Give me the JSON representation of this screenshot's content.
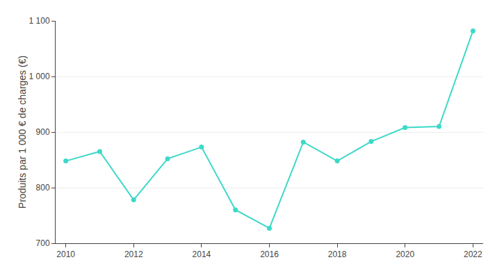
{
  "chart_data": {
    "type": "line",
    "ylabel": "Produits par 1 000 € de charges (€)",
    "x": [
      2010,
      2011,
      2012,
      2013,
      2014,
      2015,
      2016,
      2017,
      2018,
      2019,
      2020,
      2021,
      2022
    ],
    "values": [
      848,
      865,
      778,
      852,
      873,
      760,
      727,
      882,
      848,
      883,
      908,
      910,
      1082
    ],
    "color": "#3dd9c8",
    "marker": "circle",
    "xlim": [
      2009.7,
      2022.3
    ],
    "xticks": [
      2010,
      2012,
      2014,
      2016,
      2018,
      2020,
      2022
    ],
    "ylim": [
      700,
      1100
    ],
    "yticks": [
      700,
      800,
      900,
      {
        "value": 1000,
        "label": "1 000"
      },
      {
        "value": 1100,
        "label": "1 100"
      }
    ],
    "grid": "y"
  }
}
